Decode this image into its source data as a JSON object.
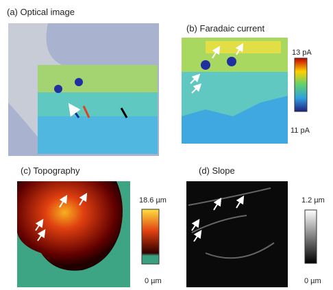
{
  "panels": [
    {
      "label": "(a) Optical image"
    },
    {
      "label": "(b) Faradaic current",
      "scale": {
        "max": "13 pA",
        "min": "11 pA"
      }
    },
    {
      "label": "(c) Topography",
      "scale": {
        "max": "18.6 µm",
        "min": "0 µm"
      }
    },
    {
      "label": "(d) Slope",
      "scale": {
        "max": "1.2 µm",
        "min": "0 µm"
      }
    }
  ]
}
